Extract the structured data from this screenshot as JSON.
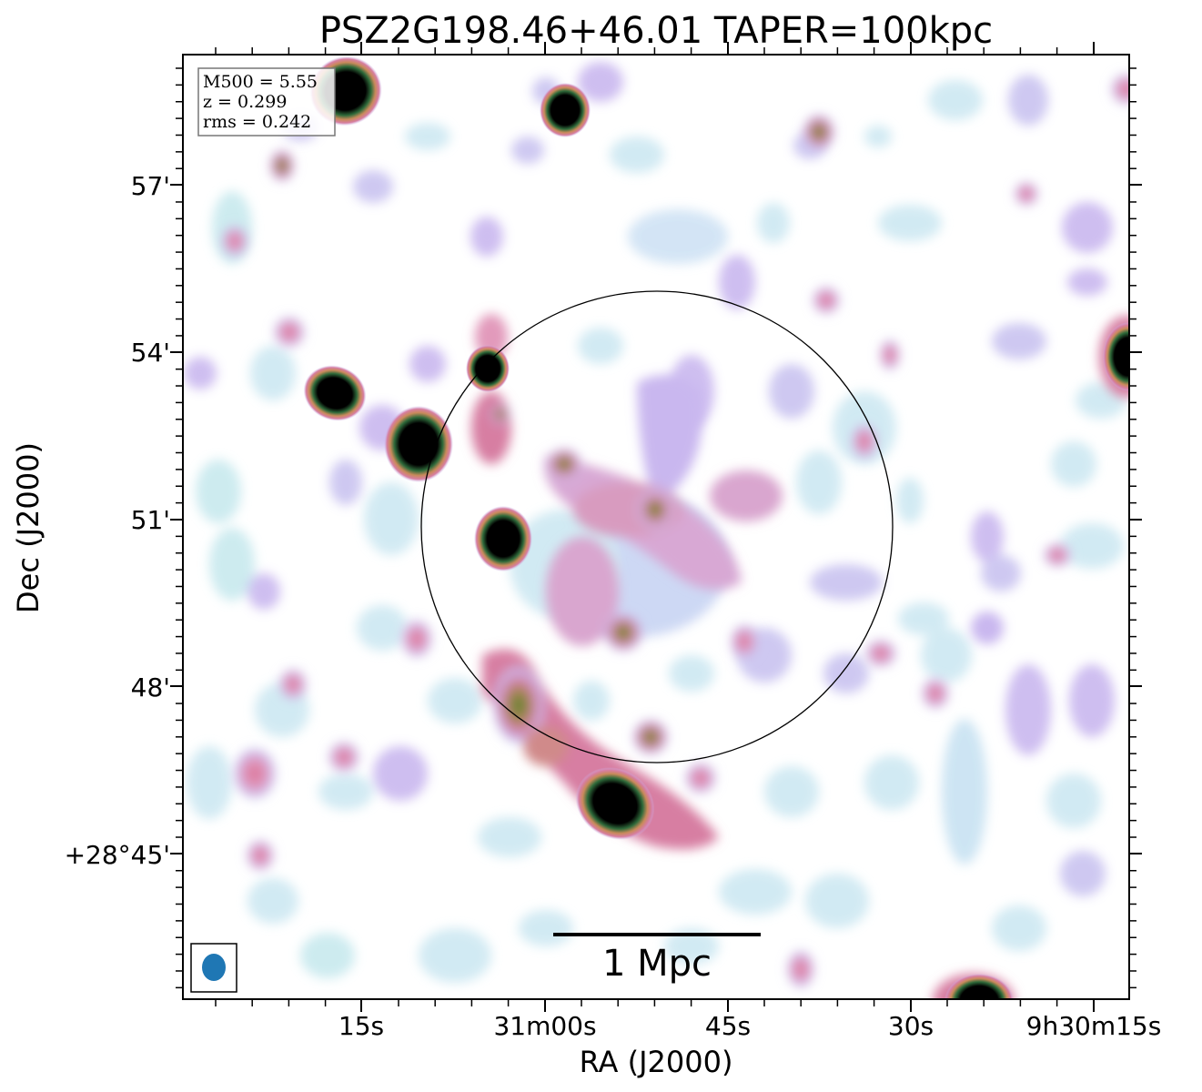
{
  "figure": {
    "title": "PSZ2G198.46+46.01 TAPER=100kpc",
    "xlabel": "RA (J2000)",
    "ylabel": "Dec (J2000)",
    "info": {
      "m500": "M500 = 5.55",
      "z": "z = 0.299",
      "rms": "rms = 0.242"
    },
    "scalebar_label": "1 Mpc",
    "x_ticks": [
      "15s",
      "31m00s",
      "45s",
      "30s",
      "9h30m15s"
    ],
    "y_ticks": [
      "57'",
      "54'",
      "51'",
      "48'",
      "+28°45'"
    ],
    "colormap": "cubehelix-like (white → cyan → lavender → pink → green → black)",
    "beam_color": "#1f77b4"
  }
}
